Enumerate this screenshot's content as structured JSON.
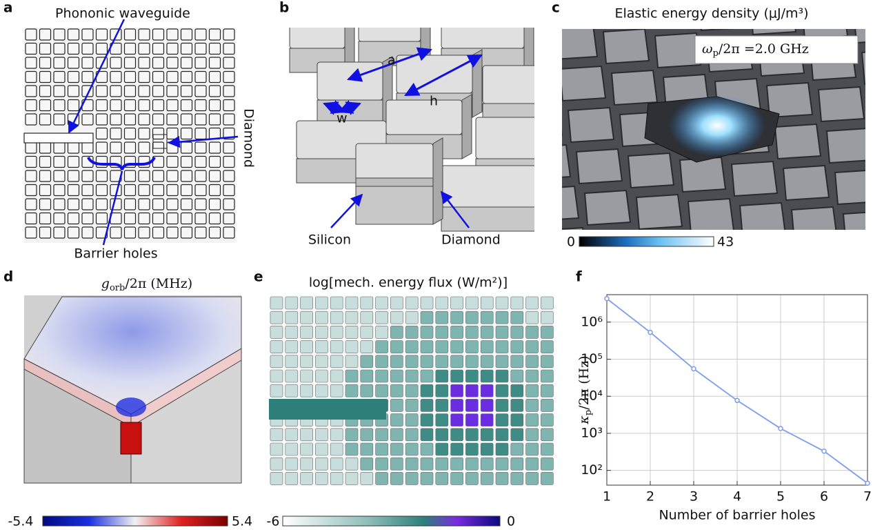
{
  "panels": {
    "a": {
      "letter": "a",
      "labels": {
        "waveguide": "Phononic waveguide",
        "diamond": "Diamond",
        "barrier": "Barrier holes"
      }
    },
    "b": {
      "letter": "b",
      "labels": {
        "a": "a",
        "h": "h",
        "w": "w",
        "silicon": "Silicon",
        "diamond": "Diamond"
      }
    },
    "c": {
      "letter": "c",
      "title": "Elastic energy density  (μJ/m³)",
      "inset": {
        "symbol": "ω",
        "subscript": "p",
        "rest": "/2π =2.0 GHz"
      },
      "colorbar": {
        "min": 0,
        "max": 43
      }
    },
    "d": {
      "letter": "d",
      "title": {
        "symbol": "g",
        "subscript": "orb",
        "rest": "/2π (MHz)"
      },
      "colorbar": {
        "min": -5.4,
        "max": 5.4
      }
    },
    "e": {
      "letter": "e",
      "title": "log[mech. energy flux (W/m²)]",
      "colorbar": {
        "min": -6,
        "max": 0
      }
    },
    "f": {
      "letter": "f"
    }
  },
  "chart_data": {
    "type": "line",
    "x": [
      1,
      2,
      3,
      4,
      5,
      6,
      7
    ],
    "values": [
      4300000,
      530000,
      55000,
      7700,
      1350,
      330,
      45
    ],
    "color": "#7b9cf0",
    "xlim": [
      1,
      7
    ],
    "xticks": [
      1,
      2,
      3,
      4,
      5,
      6,
      7
    ],
    "ylim": [
      40,
      5500000
    ],
    "log_y": true,
    "grid": true,
    "yticks": [
      {
        "value": 100,
        "label": "10²"
      },
      {
        "value": 1000,
        "label": "10³"
      },
      {
        "value": 10000,
        "label": "10⁴"
      },
      {
        "value": 100000,
        "label": "10⁵"
      },
      {
        "value": 1000000,
        "label": "10⁶"
      }
    ],
    "xlabel": "Number of barrier holes",
    "ylabel": {
      "symbol": "κ",
      "subscript": "p",
      "rest": "/2π (Hz)"
    }
  }
}
